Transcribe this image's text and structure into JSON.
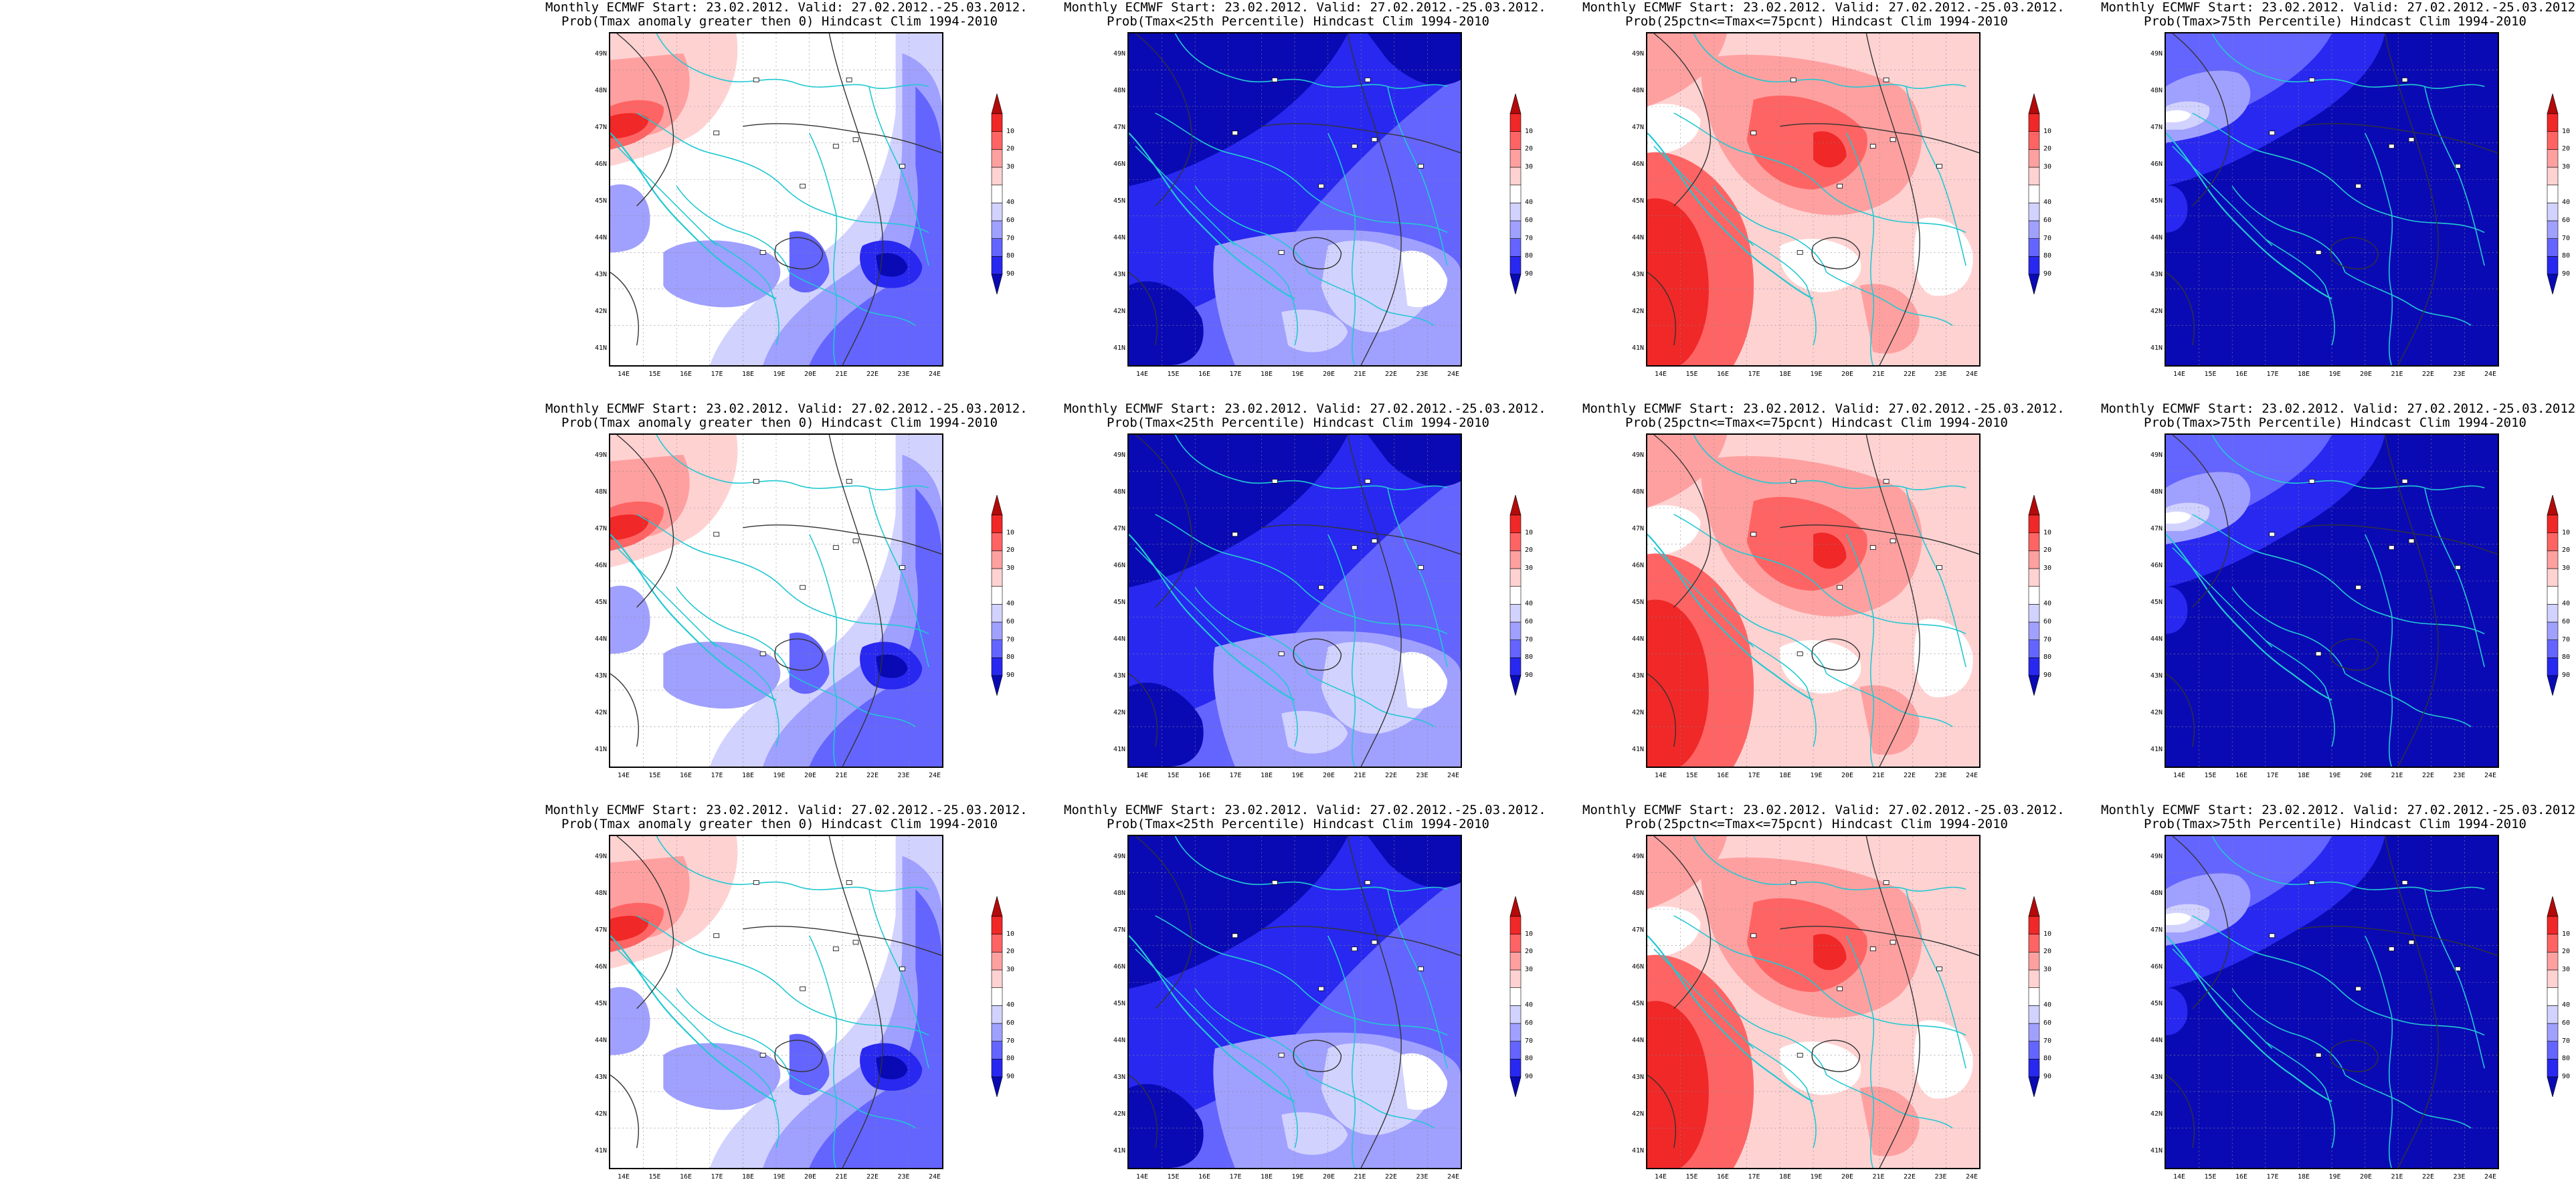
{
  "colorbar": {
    "levels": [
      "10",
      "20",
      "30",
      "40",
      "60",
      "70",
      "80",
      "90"
    ],
    "colors": [
      "#0a0ab4",
      "#2828f0",
      "#6464ff",
      "#a0a0ff",
      "#d2d2ff",
      "#ffffff",
      "#ffd2d2",
      "#ffa0a0",
      "#ff6464",
      "#f02828",
      "#b40a0a"
    ]
  },
  "axes": {
    "lat_labels": [
      "49N",
      "48N",
      "47N",
      "46N",
      "45N",
      "44N",
      "43N",
      "42N",
      "41N"
    ],
    "lon_labels": [
      "14E",
      "15E",
      "16E",
      "17E",
      "18E",
      "19E",
      "20E",
      "21E",
      "22E",
      "23E",
      "24E"
    ]
  },
  "panels": [
    {
      "title1": "Monthly ECMWF Start: 23.02.2012. Valid: 27.02.2012.-25.03.2012.",
      "title2": "Prob(Tmax anomaly greater then 0) Hindcast Clim 1994-2010",
      "type": "anomaly"
    },
    {
      "title1": "Monthly ECMWF Start: 23.02.2012. Valid: 27.02.2012.-25.03.2012.",
      "title2": "Prob(Tmax<25th Percentile) Hindcast Clim 1994-2010",
      "type": "below"
    },
    {
      "title1": "Monthly ECMWF Start: 23.02.2012. Valid: 27.02.2012.-25.03.2012.",
      "title2": "Prob(25pctn<=Tmax<=75pcnt) Hindcast Clim 1994-2010",
      "type": "normal"
    },
    {
      "title1": "Monthly ECMWF Start: 23.02.2012. Valid: 27.02.2012.-25.03.2012.",
      "title2": "Prob(Tmax>75th Percentile) Hindcast Clim 1994-2010",
      "type": "above"
    },
    {
      "title1": "Monthly ECMWF Start: 23.02.2012. Valid: 27.02.2012.-25.03.2012.",
      "title2": "Prob(Tmax anomaly greater then 0) Hindcast Clim 1994-2010",
      "type": "anomaly"
    },
    {
      "title1": "Monthly ECMWF Start: 23.02.2012. Valid: 27.02.2012.-25.03.2012.",
      "title2": "Prob(Tmax<25th Percentile) Hindcast Clim 1994-2010",
      "type": "below"
    },
    {
      "title1": "Monthly ECMWF Start: 23.02.2012. Valid: 27.02.2012.-25.03.2012.",
      "title2": "Prob(25pctn<=Tmax<=75pcnt) Hindcast Clim 1994-2010",
      "type": "normal"
    },
    {
      "title1": "Monthly ECMWF Start: 23.02.2012. Valid: 27.02.2012.-25.03.2012.",
      "title2": "Prob(Tmax>75th Percentile) Hindcast Clim 1994-2010",
      "type": "above"
    },
    {
      "title1": "Monthly ECMWF Start: 23.02.2012. Valid: 27.02.2012.-25.03.2012.",
      "title2": "Prob(Tmax anomaly greater then 0) Hindcast Clim 1994-2010",
      "type": "anomaly"
    },
    {
      "title1": "Monthly ECMWF Start: 23.02.2012. Valid: 27.02.2012.-25.03.2012.",
      "title2": "Prob(Tmax<25th Percentile) Hindcast Clim 1994-2010",
      "type": "below"
    },
    {
      "title1": "Monthly ECMWF Start: 23.02.2012. Valid: 27.02.2012.-25.03.2012.",
      "title2": "Prob(25pctn<=Tmax<=75pcnt) Hindcast Clim 1994-2010",
      "type": "normal"
    },
    {
      "title1": "Monthly ECMWF Start: 23.02.2012. Valid: 27.02.2012.-25.03.2012.",
      "title2": "Prob(Tmax>75th Percentile) Hindcast Clim 1994-2010",
      "type": "above"
    }
  ]
}
